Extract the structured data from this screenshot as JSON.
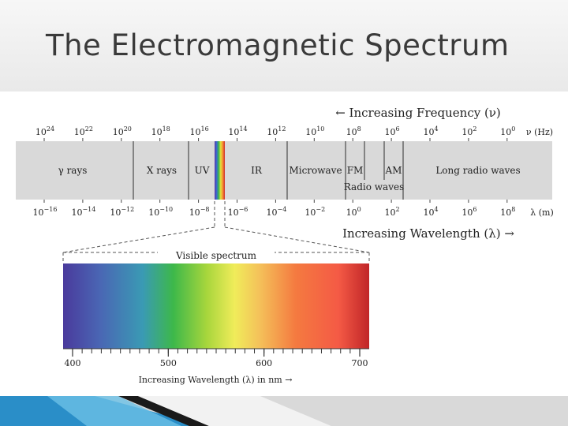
{
  "slide": {
    "title": "The Electromagnetic Spectrum"
  },
  "frequency": {
    "label": "← Increasing Frequency (ν)",
    "unit": "ν (Hz)",
    "ticks": [
      {
        "base": "10",
        "exp": "24"
      },
      {
        "base": "10",
        "exp": "22"
      },
      {
        "base": "10",
        "exp": "20"
      },
      {
        "base": "10",
        "exp": "18"
      },
      {
        "base": "10",
        "exp": "16"
      },
      {
        "base": "10",
        "exp": "14"
      },
      {
        "base": "10",
        "exp": "12"
      },
      {
        "base": "10",
        "exp": "10"
      },
      {
        "base": "10",
        "exp": "8"
      },
      {
        "base": "10",
        "exp": "6"
      },
      {
        "base": "10",
        "exp": "4"
      },
      {
        "base": "10",
        "exp": "2"
      },
      {
        "base": "10",
        "exp": "0"
      }
    ]
  },
  "wavelength": {
    "label": "Increasing Wavelength (λ) →",
    "unit": "λ (m)",
    "ticks": [
      {
        "base": "10",
        "exp": "−16"
      },
      {
        "base": "10",
        "exp": "−14"
      },
      {
        "base": "10",
        "exp": "−12"
      },
      {
        "base": "10",
        "exp": "−10"
      },
      {
        "base": "10",
        "exp": "−8"
      },
      {
        "base": "10",
        "exp": "−6"
      },
      {
        "base": "10",
        "exp": "−4"
      },
      {
        "base": "10",
        "exp": "−2"
      },
      {
        "base": "10",
        "exp": "0"
      },
      {
        "base": "10",
        "exp": "2"
      },
      {
        "base": "10",
        "exp": "4"
      },
      {
        "base": "10",
        "exp": "6"
      },
      {
        "base": "10",
        "exp": "8"
      }
    ]
  },
  "bands": {
    "gamma": "γ rays",
    "xray": "X rays",
    "uv": "UV",
    "ir": "IR",
    "microwave": "Microwave",
    "fm": "FM",
    "am": "AM",
    "radio": "Radio waves",
    "long_radio": "Long radio waves"
  },
  "visible": {
    "label": "Visible spectrum",
    "axis_label": "Increasing Wavelength (λ) in nm →",
    "ticks": [
      "400",
      "500",
      "600",
      "700"
    ]
  },
  "colors": {
    "band_fill": "#d9d9d9",
    "divider": "#555555",
    "text": "#222222",
    "visible_gradient": [
      "#4a3a9c",
      "#3f78b8",
      "#3a9ab4",
      "#3db84a",
      "#b8dc3c",
      "#f0ec5a",
      "#f4b84c",
      "#f47a40",
      "#f45a45",
      "#c02528"
    ]
  }
}
